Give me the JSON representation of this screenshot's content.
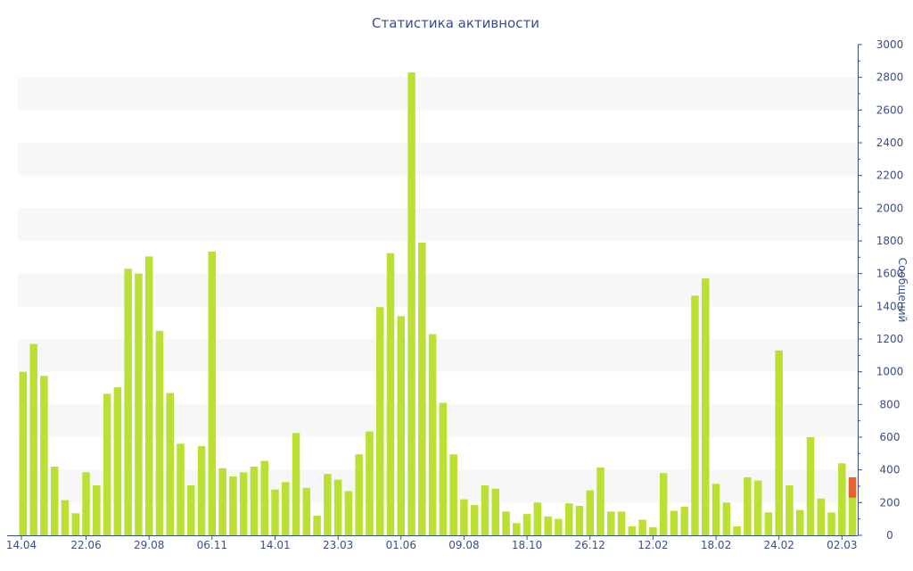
{
  "chart_data": {
    "type": "bar",
    "title": "Статистика активности",
    "xlabel": "",
    "ylabel": "Сообщений",
    "y_axis_position": "right",
    "ylim": [
      0,
      3000
    ],
    "y_ticks": [
      0,
      200,
      400,
      600,
      800,
      1000,
      1200,
      1400,
      1600,
      1800,
      2000,
      2200,
      2400,
      2600,
      2800,
      3000
    ],
    "x_tick_labels": [
      {
        "label": "14.04",
        "index": 0
      },
      {
        "label": "22.06",
        "index": 6
      },
      {
        "label": "29.08",
        "index": 12
      },
      {
        "label": "06.11",
        "index": 18
      },
      {
        "label": "14.01",
        "index": 24
      },
      {
        "label": "23.03",
        "index": 30
      },
      {
        "label": "01.06",
        "index": 36
      },
      {
        "label": "09.08",
        "index": 42
      },
      {
        "label": "18.10",
        "index": 48
      },
      {
        "label": "26.12",
        "index": 54
      },
      {
        "label": "12.02",
        "index": 60
      },
      {
        "label": "18.02",
        "index": 66
      },
      {
        "label": "24.02",
        "index": 72
      },
      {
        "label": "02.03",
        "index": 78
      }
    ],
    "grid": "alternating horizontal bands",
    "colors": {
      "bar": "#b9e033",
      "highlight": "#e8622c",
      "axis": "#3a4d8f",
      "band": "#f7f7f7"
    },
    "series": [
      {
        "values": [
          1000,
          1170,
          975,
          420,
          215,
          135,
          385,
          305,
          865,
          905,
          1630,
          1600,
          1705,
          1250,
          870,
          560,
          305,
          545,
          1735,
          410,
          360,
          385,
          420,
          455,
          280,
          325,
          625,
          290,
          120,
          375,
          340,
          270,
          495,
          635,
          1395,
          1725,
          1340,
          2830,
          1790,
          1230,
          810,
          495,
          220,
          185,
          305,
          285,
          145,
          75,
          130,
          200,
          115,
          100,
          195,
          180,
          275,
          415,
          145,
          145,
          55,
          95,
          50,
          380,
          150,
          175,
          1465,
          1570,
          315,
          200,
          55,
          355,
          335,
          140,
          1130,
          305,
          155,
          600,
          225,
          140,
          440,
          355
        ]
      }
    ],
    "highlight_index": 79,
    "highlight_split": 230
  }
}
